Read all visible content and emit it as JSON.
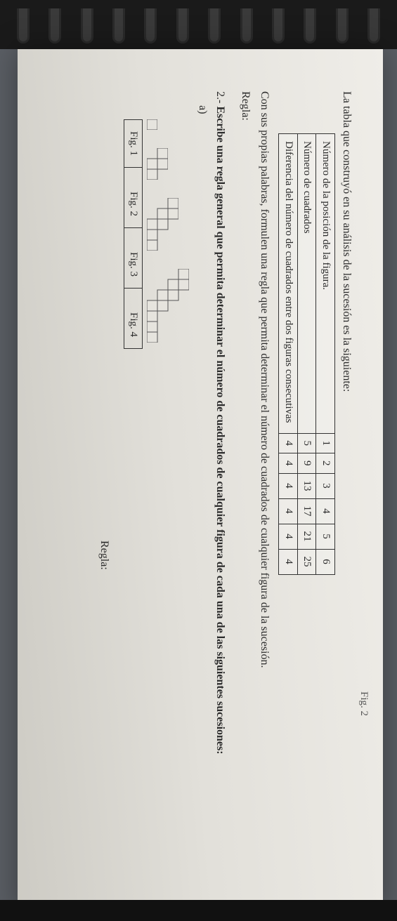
{
  "top_fig_label": "Fig. 2",
  "intro": "La tabla que construyó en su análisis de la sucesión es la siguiente:",
  "table": {
    "row1_label": "Número de la posición de la figura.",
    "row1": [
      "1",
      "2",
      "3",
      "4",
      "5",
      "6"
    ],
    "row2_label": "Número de cuadrados",
    "row2": [
      "5",
      "9",
      "13",
      "17",
      "21",
      "25"
    ],
    "row3_label": "Diferencia del número de cuadrados entre dos figuras consecutivas",
    "row3": [
      "4",
      "4",
      "4",
      "4",
      "4",
      "4"
    ]
  },
  "para1": "Con sus propias palabras, formulen una regla que permita determinar el número de cuadrados de cualquier figura de la sucesión.",
  "regla_label": "Regla:",
  "q2_prefix": "2.- ",
  "q2_bold": "Escribe una regla general que permita determinar el número de cuadrados de cualquier figura de cada una de las siguientes sucesiones:",
  "sub_a": "a)",
  "figs": {
    "cell": 15,
    "f1": [
      [
        0,
        0
      ]
    ],
    "f2": [
      [
        0,
        1
      ],
      [
        1,
        1
      ],
      [
        1,
        0
      ],
      [
        2,
        0
      ]
    ],
    "f3": [
      [
        0,
        2
      ],
      [
        1,
        2
      ],
      [
        1,
        1
      ],
      [
        2,
        1
      ],
      [
        2,
        0
      ],
      [
        3,
        0
      ],
      [
        4,
        0
      ]
    ],
    "f4": [
      [
        0,
        3
      ],
      [
        1,
        3
      ],
      [
        1,
        2
      ],
      [
        2,
        2
      ],
      [
        2,
        1
      ],
      [
        3,
        1
      ],
      [
        3,
        0
      ],
      [
        4,
        0
      ],
      [
        5,
        0
      ],
      [
        6,
        0
      ]
    ]
  },
  "captions": [
    "Fig. 1",
    "Fig. 2",
    "Fig. 3",
    "Fig. 4"
  ],
  "regla_right": "Regla:"
}
